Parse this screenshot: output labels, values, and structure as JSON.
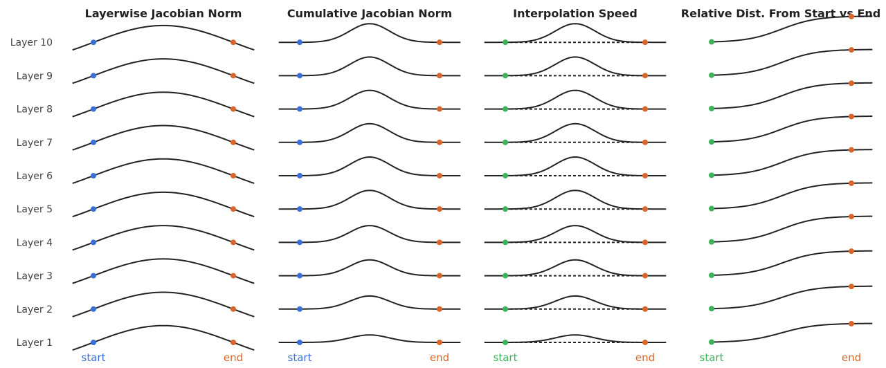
{
  "chart_data": {
    "type": "line",
    "layers": [
      "Layer 1",
      "Layer 2",
      "Layer 3",
      "Layer 4",
      "Layer 5",
      "Layer 6",
      "Layer 7",
      "Layer 8",
      "Layer 9",
      "Layer 10"
    ],
    "x_range": [
      -0.15,
      1.15
    ],
    "start_x": 0,
    "end_x": 1,
    "start_label": "start",
    "end_label": "end",
    "panels": [
      {
        "title": "Layerwise Jacobian Norm",
        "kind": "arch",
        "baseline_dashed": false,
        "start_color": "#3a6fd8",
        "end_color": "#d9652b",
        "bump_heights": [
          0.9,
          0.9,
          0.9,
          0.9,
          0.9,
          0.9,
          0.9,
          0.9,
          0.9,
          0.9
        ]
      },
      {
        "title": "Cumulative Jacobian Norm",
        "kind": "bump",
        "baseline_dashed": false,
        "start_color": "#3a6fd8",
        "end_color": "#d9652b",
        "bump_heights": [
          0.4,
          0.7,
          0.85,
          0.9,
          1.0,
          1.0,
          1.0,
          1.0,
          1.0,
          1.0
        ]
      },
      {
        "title": "Interpolation Speed",
        "kind": "bump",
        "baseline_dashed": true,
        "start_color": "#3cb25a",
        "end_color": "#d9652b",
        "bump_heights": [
          0.4,
          0.7,
          0.85,
          0.9,
          1.0,
          1.0,
          1.0,
          1.0,
          1.0,
          1.0
        ]
      },
      {
        "title": "Relative Dist. From Start vs End",
        "kind": "sigmoid",
        "baseline_dashed": false,
        "start_color": "#3cb25a",
        "end_color": "#d9652b",
        "rise_heights": [
          1.45,
          1.75,
          1.9,
          2.0,
          2.0,
          2.0,
          2.0,
          2.0,
          2.0,
          2.0
        ]
      }
    ]
  }
}
